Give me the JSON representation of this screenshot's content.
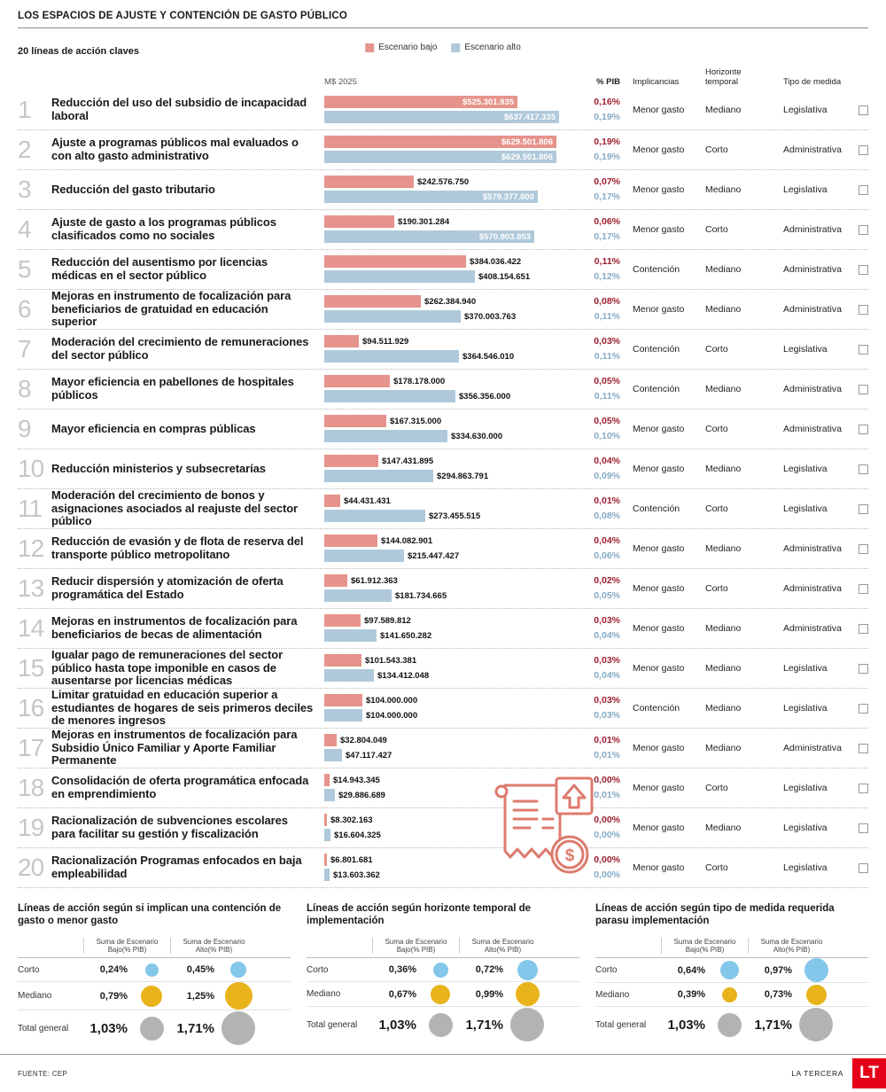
{
  "header": {
    "title": "LOS ESPACIOS DE AJUSTE Y CONTENCIÓN DE GASTO PÚBLICO",
    "subtitle": "20 líneas de acción claves"
  },
  "legend": {
    "low": "Escenario bajo",
    "high": "Escenario alto"
  },
  "columns": {
    "currency": "M$ 2025",
    "pib": "% PIB",
    "implicancias": "Implicancias",
    "horizonte": "Horizonte temporal",
    "tipo": "Tipo de medida"
  },
  "colors": {
    "bar_low": "#e6938b",
    "bar_high": "#afc9da",
    "pib_low": "#9e1e30",
    "pib_high": "#85abc6",
    "bubble_corto": "#83c7ea",
    "bubble_mediano": "#e9b31c",
    "bubble_total": "#b3b3b3",
    "logo_red": "#e50019"
  },
  "chart_data": {
    "type": "bar",
    "orientation": "horizontal",
    "unit": "M$ 2025",
    "series_labels": [
      "Escenario bajo",
      "Escenario alto"
    ],
    "max_value": 637417335,
    "rows": [
      {
        "n": "1",
        "label": "Reducción del uso del subsidio de incapacidad laboral",
        "low": 525301935,
        "low_label": "$525.301.935",
        "low_pib": "0,16%",
        "high": 637417335,
        "high_label": "$637.417.335",
        "high_pib": "0,19%",
        "impl": "Menor gasto",
        "horizon": "Mediano",
        "tipo": "Legislativa"
      },
      {
        "n": "2",
        "label": "Ajuste a programas públicos mal evaluados o con alto gasto administrativo",
        "low": 629501806,
        "low_label": "$629.501.806",
        "low_pib": "0,19%",
        "high": 629501806,
        "high_label": "$629.501.806",
        "high_pib": "0,19%",
        "impl": "Menor gasto",
        "horizon": "Corto",
        "tipo": "Administrativa"
      },
      {
        "n": "3",
        "label": "Reducción del gasto tributario",
        "low": 242576750,
        "low_label": "$242.576.750",
        "low_pib": "0,07%",
        "high": 579377800,
        "high_label": "$579.377.800",
        "high_pib": "0,17%",
        "impl": "Menor gasto",
        "horizon": "Mediano",
        "tipo": "Legislativa"
      },
      {
        "n": "4",
        "label": "Ajuste de gasto a los programas públicos clasificados como no sociales",
        "low": 190301284,
        "low_label": "$190.301.284",
        "low_pib": "0,06%",
        "high": 570903853,
        "high_label": "$570.903.853",
        "high_pib": "0,17%",
        "impl": "Menor gasto",
        "horizon": "Corto",
        "tipo": "Administrativa"
      },
      {
        "n": "5",
        "label": "Reducción del ausentismo por licencias médicas en el sector público",
        "low": 384036422,
        "low_label": "$384.036.422",
        "low_pib": "0,11%",
        "high": 408154651,
        "high_label": "$408.154.651",
        "high_pib": "0,12%",
        "impl": "Contención",
        "horizon": "Mediano",
        "tipo": "Administrativa"
      },
      {
        "n": "6",
        "label": "Mejoras en instrumento de focalización para beneficiarios de gratuidad en educación superior",
        "low": 262384940,
        "low_label": "$262.384.940",
        "low_pib": "0,08%",
        "high": 370003763,
        "high_label": "$370.003.763",
        "high_pib": "0,11%",
        "impl": "Menor gasto",
        "horizon": "Mediano",
        "tipo": "Administrativa"
      },
      {
        "n": "7",
        "label": "Moderación del crecimiento de remuneraciones del sector público",
        "low": 94511929,
        "low_label": "$94.511.929",
        "low_pib": "0,03%",
        "high": 364546010,
        "high_label": "$364.546.010",
        "high_pib": "0,11%",
        "impl": "Contención",
        "horizon": "Corto",
        "tipo": "Legislativa"
      },
      {
        "n": "8",
        "label": "Mayor eficiencia en pabellones de hospitales públicos",
        "low": 178178000,
        "low_label": "$178.178.000",
        "low_pib": "0,05%",
        "high": 356356000,
        "high_label": "$356.356.000",
        "high_pib": "0,11%",
        "impl": "Contención",
        "horizon": "Mediano",
        "tipo": "Administrativa"
      },
      {
        "n": "9",
        "label": "Mayor eficiencia en compras públicas",
        "low": 167315000,
        "low_label": "$167.315.000",
        "low_pib": "0,05%",
        "high": 334630000,
        "high_label": "$334.630.000",
        "high_pib": "0,10%",
        "impl": "Menor gasto",
        "horizon": "Corto",
        "tipo": "Administrativa"
      },
      {
        "n": "10",
        "label": "Reducción ministerios y subsecretarías",
        "low": 147431895,
        "low_label": "$147.431.895",
        "low_pib": "0,04%",
        "high": 294863791,
        "high_label": "$294.863.791",
        "high_pib": "0,09%",
        "impl": "Menor gasto",
        "horizon": "Mediano",
        "tipo": "Legislativa"
      },
      {
        "n": "11",
        "label": "Moderación del crecimiento de bonos y asignaciones asociados al reajuste del sector público",
        "low": 44431431,
        "low_label": "$44.431.431",
        "low_pib": "0,01%",
        "high": 273455515,
        "high_label": "$273.455.515",
        "high_pib": "0,08%",
        "impl": "Contención",
        "horizon": "Corto",
        "tipo": "Legislativa"
      },
      {
        "n": "12",
        "label": "Reducción de evasión y de flota de reserva del transporte público metropolitano",
        "low": 144082901,
        "low_label": "$144.082.901",
        "low_pib": "0,04%",
        "high": 215447427,
        "high_label": "$215.447.427",
        "high_pib": "0,06%",
        "impl": "Menor gasto",
        "horizon": "Mediano",
        "tipo": "Administrativa"
      },
      {
        "n": "13",
        "label": "Reducir dispersión y atomización de oferta programática del Estado",
        "low": 61912363,
        "low_label": "$61.912.363",
        "low_pib": "0,02%",
        "high": 181734665,
        "high_label": "$181.734.665",
        "high_pib": "0,05%",
        "impl": "Menor gasto",
        "horizon": "Corto",
        "tipo": "Administrativa"
      },
      {
        "n": "14",
        "label": "Mejoras en instrumentos de focalización para beneficiarios de becas de alimentación",
        "low": 97589812,
        "low_label": "$97.589.812",
        "low_pib": "0,03%",
        "high": 141650282,
        "high_label": "$141.650.282",
        "high_pib": "0,04%",
        "impl": "Menor gasto",
        "horizon": "Mediano",
        "tipo": "Administrativa"
      },
      {
        "n": "15",
        "label": "Igualar pago de remuneraciones del sector público hasta tope imponible en casos de ausentarse por licencias médicas",
        "low": 101543381,
        "low_label": "$101.543.381",
        "low_pib": "0,03%",
        "high": 134412048,
        "high_label": "$134.412.048",
        "high_pib": "0,04%",
        "impl": "Menor gasto",
        "horizon": "Mediano",
        "tipo": "Legislativa"
      },
      {
        "n": "16",
        "label": "Limitar gratuidad en educación superior a estudiantes de hogares de seis primeros deciles de menores ingresos",
        "low": 104000000,
        "low_label": "$104.000.000",
        "low_pib": "0,03%",
        "high": 104000000,
        "high_label": "$104.000.000",
        "high_pib": "0,03%",
        "impl": "Contención",
        "horizon": "Mediano",
        "tipo": "Legislativa"
      },
      {
        "n": "17",
        "label": "Mejoras en instrumentos de focalización para Subsidio Único Familiar y Aporte Familiar Permanente",
        "low": 32804049,
        "low_label": "$32.804.049",
        "low_pib": "0,01%",
        "high": 47117427,
        "high_label": "$47.117.427",
        "high_pib": "0,01%",
        "impl": "Menor gasto",
        "horizon": "Mediano",
        "tipo": "Administrativa"
      },
      {
        "n": "18",
        "label": "Consolidación de oferta programática enfocada en emprendimiento",
        "low": 14943345,
        "low_label": "$14.943.345",
        "low_pib": "0,00%",
        "high": 29886689,
        "high_label": "$29.886.689",
        "high_pib": "0,01%",
        "impl": "Menor gasto",
        "horizon": "Corto",
        "tipo": "Legislativa"
      },
      {
        "n": "19",
        "label": "Racionalización de subvenciones escolares para facilitar su gestión y fiscalización",
        "low": 8302163,
        "low_label": "$8.302.163",
        "low_pib": "0,00%",
        "high": 16604325,
        "high_label": "$16.604.325",
        "high_pib": "0,00%",
        "impl": "Menor gasto",
        "horizon": "Mediano",
        "tipo": "Legislativa"
      },
      {
        "n": "20",
        "label": "Racionalización Programas enfocados en baja empleabilidad",
        "low": 6801681,
        "low_label": "$6.801.681",
        "low_pib": "0,00%",
        "high": 13603362,
        "high_label": "$13.603.362",
        "high_pib": "0,00%",
        "impl": "Menor gasto",
        "horizon": "Corto",
        "tipo": "Legislativa"
      }
    ]
  },
  "summaries": [
    {
      "title": "Líneas de acción según si implican una contención de gasto o menor gasto",
      "col_low": "Suma de Escenario Bajo(% PIB)",
      "col_high": "Suma de Escenario Alto(% PIB)",
      "rows": [
        {
          "label": "Corto",
          "low": "0,24%",
          "high": "0,45%",
          "color": "#83c7ea"
        },
        {
          "label": "Mediano",
          "low": "0,79%",
          "high": "1,25%",
          "color": "#e9b31c"
        },
        {
          "label": "Total general",
          "low": "1,03%",
          "high": "1,71%",
          "color": "#b3b3b3"
        }
      ]
    },
    {
      "title": "Líneas de acción según horizonte temporal de implementación",
      "col_low": "Suma de Escenario Bajo(% PIB)",
      "col_high": "Suma de Escenario Alto(% PIB)",
      "rows": [
        {
          "label": "Corto",
          "low": "0,36%",
          "high": "0,72%",
          "color": "#83c7ea"
        },
        {
          "label": "Mediano",
          "low": "0,67%",
          "high": "0,99%",
          "color": "#e9b31c"
        },
        {
          "label": "Total general",
          "low": "1,03%",
          "high": "1,71%",
          "color": "#b3b3b3"
        }
      ]
    },
    {
      "title": "Líneas de acción según tipo de medida requerida parasu implementación",
      "col_low": "Suma de Escenario Bajo(% PIB)",
      "col_high": "Suma de Escenario Alto(% PIB)",
      "rows": [
        {
          "label": "Corto",
          "low": "0,64%",
          "high": "0,97%",
          "color": "#83c7ea"
        },
        {
          "label": "Mediano",
          "low": "0,39%",
          "high": "0,73%",
          "color": "#e9b31c"
        },
        {
          "label": "Total general",
          "low": "1,03%",
          "high": "1,71%",
          "color": "#b3b3b3"
        }
      ]
    }
  ],
  "footer": {
    "source": "FUENTE: CEP",
    "brand": "LA TERCERA",
    "logo": "LT"
  }
}
